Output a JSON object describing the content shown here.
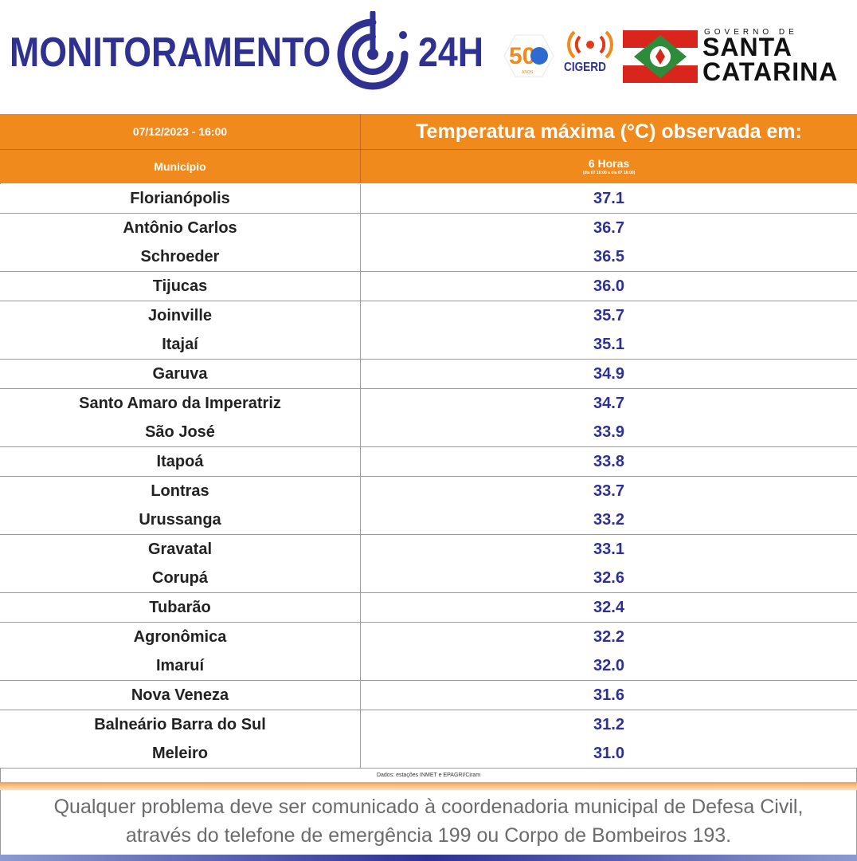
{
  "header": {
    "brand_text": "MONITORAMENTO",
    "brand_24h": "24H",
    "logo_50": "50",
    "logo_50_sub": "ANOS",
    "cigerd": "CIGERD",
    "gov_small": "GOVERNO DE",
    "gov_line1": "SANTA",
    "gov_line2": "CATARINA",
    "colors": {
      "brand_blue": "#2e3192",
      "header_orange": "#f08a1c",
      "flag_red": "#d9261c",
      "flag_green": "#2e8b3a"
    }
  },
  "table": {
    "date": "07/12/2023 - 16:00",
    "title": "Temperatura máxima (°C) observada em:",
    "col_municipio": "Município",
    "col_period": "6 Horas",
    "col_period_sub": "(dia 07 10:00 a dia 07 16:00)",
    "rows": [
      {
        "municipio": "Florianópolis",
        "temp": "37.1"
      },
      {
        "municipio": "Antônio Carlos",
        "temp": "36.7"
      },
      {
        "municipio": "Schroeder",
        "temp": "36.5"
      },
      {
        "municipio": "Tijucas",
        "temp": "36.0"
      },
      {
        "municipio": "Joinville",
        "temp": "35.7"
      },
      {
        "municipio": "Itajaí",
        "temp": "35.1"
      },
      {
        "municipio": "Garuva",
        "temp": "34.9"
      },
      {
        "municipio": "Santo Amaro da Imperatriz",
        "temp": "34.7"
      },
      {
        "municipio": "São José",
        "temp": "33.9"
      },
      {
        "municipio": "Itapoá",
        "temp": "33.8"
      },
      {
        "municipio": "Lontras",
        "temp": "33.7"
      },
      {
        "municipio": "Urussanga",
        "temp": "33.2"
      },
      {
        "municipio": "Gravatal",
        "temp": "33.1"
      },
      {
        "municipio": "Corupá",
        "temp": "32.6"
      },
      {
        "municipio": "Tubarão",
        "temp": "32.4"
      },
      {
        "municipio": "Agronômica",
        "temp": "32.2"
      },
      {
        "municipio": "Imaruí",
        "temp": "32.0"
      },
      {
        "municipio": "Nova Veneza",
        "temp": "31.6"
      },
      {
        "municipio": "Balneário Barra do Sul",
        "temp": "31.2"
      },
      {
        "municipio": "Meleiro",
        "temp": "31.0"
      }
    ],
    "source": "Dados: estações INMET e EPAGRI/Ciram"
  },
  "footer": {
    "line1": "Qualquer problema deve ser comunicado à coordenadoria municipal de Defesa Civil,",
    "line2": "através do telefone de emergência 199 ou Corpo de Bombeiros 193."
  }
}
